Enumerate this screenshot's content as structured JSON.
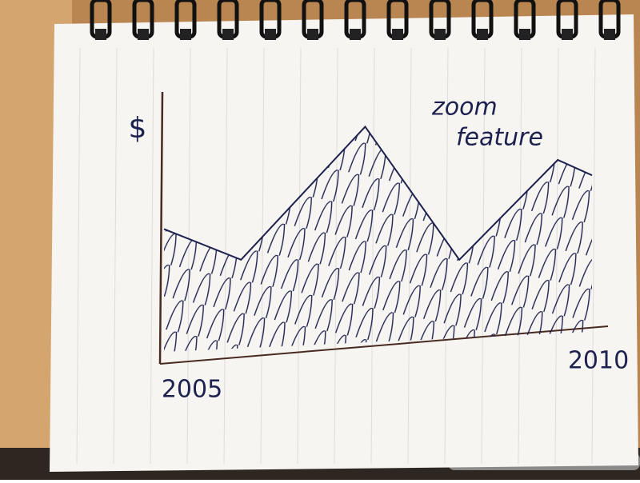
{
  "chart_data": {
    "type": "area",
    "annotations": [
      "zoom",
      "feature"
    ],
    "y_label": "$",
    "x": [
      2005,
      2005.9,
      2007.35,
      2008.45,
      2009.6,
      2010
    ],
    "values": [
      48,
      36,
      88,
      36,
      75,
      69
    ],
    "color": "#1c2150",
    "xlim": [
      2005,
      2010
    ],
    "xticks": [
      2005,
      2010
    ],
    "ylim": [
      0,
      100
    ]
  }
}
